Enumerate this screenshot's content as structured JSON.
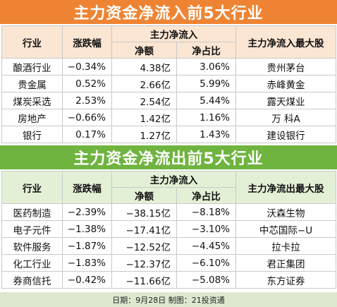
{
  "inflow": {
    "title": "主力资金净流入前5大行业",
    "headers": {
      "industry": "行业",
      "change": "涨跌幅",
      "group": "主力净流入",
      "net": "净额",
      "ratio": "净占比",
      "top_stock": "主力净流入最大股"
    },
    "rows": [
      {
        "industry": "酿酒行业",
        "change": "−0.34%",
        "net": "4.38亿",
        "ratio": "3.06%",
        "top_stock": "贵州茅台"
      },
      {
        "industry": "贵金属",
        "change": "0.52%",
        "net": "2.66亿",
        "ratio": "5.99%",
        "top_stock": "赤峰黄金"
      },
      {
        "industry": "煤炭采选",
        "change": "2.53%",
        "net": "2.54亿",
        "ratio": "5.44%",
        "top_stock": "露天煤业"
      },
      {
        "industry": "房地产",
        "change": "−0.66%",
        "net": "1.42亿",
        "ratio": "1.16%",
        "top_stock": "万 科A"
      },
      {
        "industry": "银行",
        "change": "0.17%",
        "net": "1.27亿",
        "ratio": "1.43%",
        "top_stock": "建设银行"
      }
    ]
  },
  "outflow": {
    "title": "主力资金净流出前5大行业",
    "headers": {
      "industry": "行业",
      "change": "涨跌幅",
      "group": "主力净流入",
      "net": "净额",
      "ratio": "净占比",
      "top_stock": "主力净流出最大股"
    },
    "rows": [
      {
        "industry": "医药制造",
        "change": "−2.39%",
        "net": "−38.15亿",
        "ratio": "−8.18%",
        "top_stock": "沃森生物"
      },
      {
        "industry": "电子元件",
        "change": "−1.38%",
        "net": "−17.41亿",
        "ratio": "−3.10%",
        "top_stock": "中芯国际−U"
      },
      {
        "industry": "软件服务",
        "change": "−1.87%",
        "net": "−12.52亿",
        "ratio": "−4.45%",
        "top_stock": "拉卡拉"
      },
      {
        "industry": "化工行业",
        "change": "−1.83%",
        "net": "−12.37亿",
        "ratio": "−6.10%",
        "top_stock": "君正集团"
      },
      {
        "industry": "券商信托",
        "change": "−0.42%",
        "net": "−11.66亿",
        "ratio": "−5.08%",
        "top_stock": "东方证券"
      }
    ]
  },
  "footer": "日期：9月28日 制图：21投资通",
  "colors": {
    "inflow_banner": "#ee8433",
    "inflow_header": "#fbe6d3",
    "outflow_banner": "#6fb43f",
    "outflow_header": "#e3f0d6",
    "footer_bg": "#dde8cf"
  }
}
